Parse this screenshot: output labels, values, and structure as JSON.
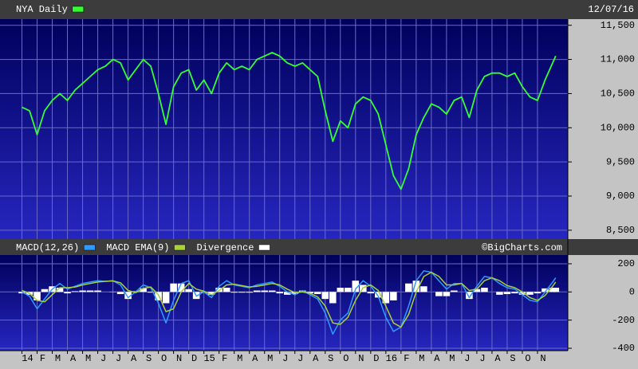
{
  "chart_data": [
    {
      "type": "line",
      "date_label": "12/07/16",
      "x": [
        0,
        0.5,
        1,
        1.5,
        2,
        2.5,
        3,
        3.5,
        4,
        4.5,
        5,
        5.5,
        6,
        6.5,
        7,
        7.5,
        8,
        8.5,
        9,
        9.5,
        10,
        10.5,
        11,
        11.5,
        12,
        12.5,
        13,
        13.5,
        14,
        14.5,
        15,
        15.5,
        16,
        16.5,
        17,
        17.5,
        18,
        18.5,
        19,
        19.5,
        20,
        20.5,
        21,
        21.5,
        22,
        22.5,
        23,
        23.5,
        24,
        24.5,
        25,
        25.5,
        26,
        26.5,
        27,
        27.5,
        28,
        28.5,
        29,
        29.5,
        30,
        30.5,
        31,
        31.5,
        32,
        32.5,
        33,
        33.5,
        34,
        34.5,
        35,
        35.2
      ],
      "series": [
        {
          "name": "NYA Daily",
          "color": "#33ff33",
          "values": [
            10300,
            10250,
            9900,
            10250,
            10400,
            10500,
            10400,
            10550,
            10650,
            10750,
            10850,
            10900,
            11000,
            10950,
            10700,
            10850,
            11000,
            10900,
            10500,
            10050,
            10600,
            10800,
            10850,
            10550,
            10700,
            10500,
            10800,
            10950,
            10850,
            10900,
            10850,
            11000,
            11050,
            11100,
            11050,
            10950,
            10900,
            10950,
            10850,
            10750,
            10250,
            9800,
            10100,
            10000,
            10350,
            10450,
            10400,
            10200,
            9750,
            9300,
            9100,
            9400,
            9900,
            10150,
            10350,
            10300,
            10200,
            10400,
            10450,
            10150,
            10550,
            10750,
            10800,
            10800,
            10750,
            10800,
            10600,
            10450,
            10400,
            10700,
            10950,
            11050
          ]
        }
      ],
      "xlim": [
        -0.5,
        36
      ],
      "ylim": [
        8370,
        11590
      ],
      "yticks": [
        {
          "value": 8500,
          "label": "8,500"
        },
        {
          "value": 9000,
          "label": "9,000"
        },
        {
          "value": 9500,
          "label": "9,500"
        },
        {
          "value": 10000,
          "label": "10,000"
        },
        {
          "value": 10500,
          "label": "10,500"
        },
        {
          "value": 11000,
          "label": "11,000"
        },
        {
          "value": 11500,
          "label": "11,500"
        }
      ],
      "grid": true
    },
    {
      "type": "macd",
      "credit": "©BigCharts.com",
      "series": [
        {
          "name": "MACD(12,26)",
          "color": "#2f9bff",
          "type": "line",
          "values": [
            0,
            -30,
            -120,
            -50,
            20,
            60,
            20,
            40,
            60,
            70,
            80,
            75,
            80,
            50,
            -40,
            0,
            50,
            30,
            -80,
            -220,
            -60,
            60,
            80,
            -30,
            0,
            -40,
            40,
            80,
            50,
            40,
            30,
            50,
            60,
            70,
            40,
            0,
            -20,
            10,
            -20,
            -50,
            -150,
            -300,
            -200,
            -150,
            20,
            80,
            40,
            -30,
            -180,
            -280,
            -250,
            -100,
            80,
            150,
            140,
            80,
            20,
            60,
            60,
            -40,
            40,
            110,
            100,
            60,
            30,
            20,
            -20,
            -60,
            -70,
            0,
            70,
            100
          ]
        },
        {
          "name": "MACD EMA(9)",
          "color": "#a8d23a",
          "type": "line",
          "values": [
            10,
            -10,
            -60,
            -70,
            -20,
            30,
            30,
            35,
            50,
            60,
            70,
            75,
            78,
            65,
            10,
            -5,
            25,
            35,
            -20,
            -140,
            -120,
            0,
            60,
            20,
            5,
            -20,
            10,
            50,
            55,
            45,
            35,
            40,
            50,
            60,
            50,
            20,
            -5,
            0,
            -10,
            -35,
            -100,
            -220,
            -230,
            -180,
            -60,
            30,
            50,
            10,
            -100,
            -220,
            -250,
            -160,
            0,
            110,
            140,
            110,
            50,
            50,
            60,
            10,
            20,
            80,
            100,
            80,
            45,
            30,
            0,
            -40,
            -60,
            -25,
            40,
            70
          ]
        },
        {
          "name": "Divergence",
          "color": "#ffffff",
          "type": "bar",
          "values": [
            -10,
            -20,
            -60,
            20,
            40,
            30,
            -10,
            5,
            10,
            10,
            10,
            0,
            2,
            -15,
            -50,
            5,
            25,
            -5,
            -60,
            -80,
            60,
            60,
            20,
            -50,
            -5,
            -20,
            30,
            30,
            -5,
            -5,
            -5,
            10,
            10,
            10,
            -10,
            -20,
            -15,
            10,
            -10,
            -15,
            -50,
            -80,
            30,
            30,
            80,
            50,
            -10,
            -40,
            -80,
            -60,
            0,
            60,
            80,
            40,
            0,
            -30,
            -30,
            10,
            0,
            -50,
            20,
            30,
            0,
            -20,
            -15,
            -10,
            -20,
            -20,
            -10,
            25,
            30,
            30
          ]
        }
      ],
      "ylim": [
        -417,
        262
      ],
      "yticks": [
        -400,
        -200,
        0,
        200
      ],
      "xticks": [
        {
          "value": 0,
          "label": "14"
        },
        {
          "value": 1,
          "label": "F"
        },
        {
          "value": 2,
          "label": "M"
        },
        {
          "value": 3,
          "label": "A"
        },
        {
          "value": 4,
          "label": "M"
        },
        {
          "value": 5,
          "label": "J"
        },
        {
          "value": 6,
          "label": "J"
        },
        {
          "value": 7,
          "label": "A"
        },
        {
          "value": 8,
          "label": "S"
        },
        {
          "value": 9,
          "label": "O"
        },
        {
          "value": 10,
          "label": "N"
        },
        {
          "value": 11,
          "label": "D"
        },
        {
          "value": 12,
          "label": "15"
        },
        {
          "value": 13,
          "label": "F"
        },
        {
          "value": 14,
          "label": "M"
        },
        {
          "value": 15,
          "label": "A"
        },
        {
          "value": 16,
          "label": "M"
        },
        {
          "value": 17,
          "label": "J"
        },
        {
          "value": 18,
          "label": "J"
        },
        {
          "value": 19,
          "label": "A"
        },
        {
          "value": 20,
          "label": "S"
        },
        {
          "value": 21,
          "label": "O"
        },
        {
          "value": 22,
          "label": "N"
        },
        {
          "value": 23,
          "label": "D"
        },
        {
          "value": 24,
          "label": "16"
        },
        {
          "value": 25,
          "label": "F"
        },
        {
          "value": 26,
          "label": "M"
        },
        {
          "value": 27,
          "label": "A"
        },
        {
          "value": 28,
          "label": "M"
        },
        {
          "value": 29,
          "label": "J"
        },
        {
          "value": 30,
          "label": "J"
        },
        {
          "value": 31,
          "label": "A"
        },
        {
          "value": 32,
          "label": "S"
        },
        {
          "value": 33,
          "label": "O"
        },
        {
          "value": 34,
          "label": "N"
        }
      ],
      "grid": true
    }
  ]
}
